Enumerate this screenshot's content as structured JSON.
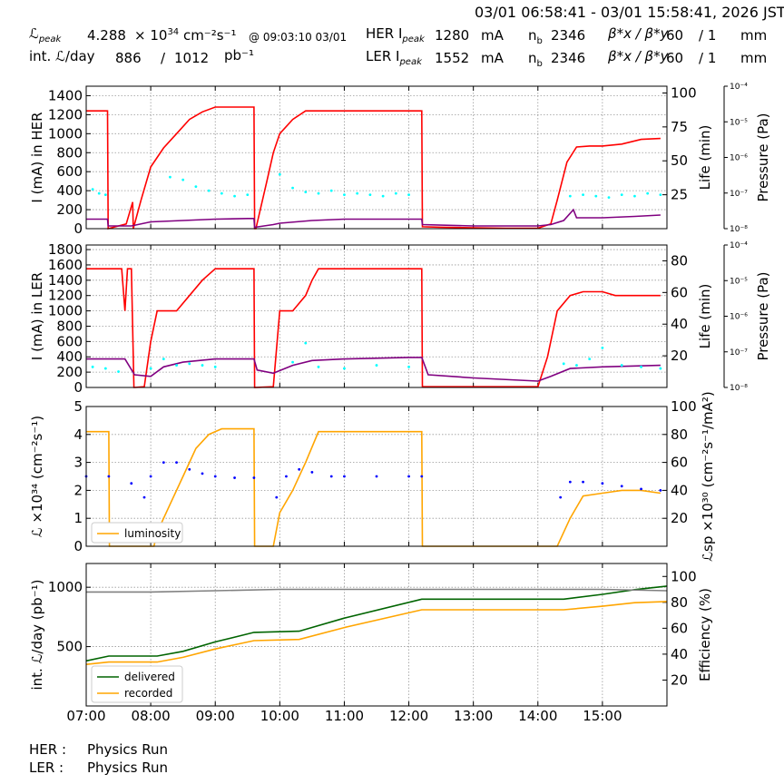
{
  "header": {
    "time_range": "03/01 06:58:41 - 03/01 15:58:41, 2026 JST",
    "lpeak_label": "ℒ",
    "lpeak_sub": "peak",
    "lpeak_value": "4.288",
    "lpeak_unit_pre": "× 10",
    "lpeak_unit_exp": "34",
    "lpeak_unit_post": "cm⁻²s⁻¹",
    "lpeak_at": "@ 09:03:10 03/01",
    "intl_label": "int. ℒ/day",
    "intl_value": "886",
    "intl_sep": "/",
    "intl_total": "1012",
    "intl_unit": "pb⁻¹",
    "her_label": "HER I",
    "her_sub": "peak",
    "her_value": "1280",
    "her_unit": "mA",
    "her_nb_label": "n",
    "her_nb_sub": "b",
    "her_nb": "2346",
    "her_beta_label": "β*x / β*y",
    "her_beta_x": "60",
    "her_beta_sep": "/ 1",
    "her_beta_unit": "mm",
    "ler_label": "LER I",
    "ler_sub": "peak",
    "ler_value": "1552",
    "ler_unit": "mA",
    "ler_nb_label": "n",
    "ler_nb_sub": "b",
    "ler_nb": "2346",
    "ler_beta_label": "β*x / β*y",
    "ler_beta_x": "60",
    "ler_beta_sep": "/ 1",
    "ler_beta_unit": "mm"
  },
  "footer": {
    "her_label": "HER :",
    "her_status": "Physics Run",
    "ler_label": "LER :",
    "ler_status": "Physics Run"
  },
  "colors": {
    "current": "#ff0000",
    "life": "#800080",
    "pressure": "#00ffff",
    "luminosity": "#ffa500",
    "specific": "#0000ff",
    "delivered": "#006400",
    "recorded": "#ffa500",
    "efficiency": "#808080"
  },
  "chart_data": [
    {
      "type": "line",
      "panel": "her",
      "ylabel": "I (mA) in HER",
      "ylabel2": "Life (min)",
      "ylabel3": "Pressure (Pa)",
      "xlim": [
        7.0,
        16.0
      ],
      "ylim": [
        0,
        1500
      ],
      "yticks": [
        0,
        200,
        400,
        600,
        800,
        1000,
        1200,
        1400
      ],
      "y2lim": [
        0,
        105
      ],
      "y2ticks": [
        25,
        50,
        75,
        100
      ],
      "y3ticks": [
        "10⁻⁸",
        "10⁻⁷",
        "10⁻⁶",
        "10⁻⁵",
        "10⁻⁴"
      ],
      "series": [
        {
          "role": "current",
          "x": [
            7.0,
            7.33,
            7.34,
            7.62,
            7.72,
            7.73,
            7.85,
            8.0,
            8.2,
            8.4,
            8.6,
            8.8,
            9.0,
            9.2,
            9.6,
            9.61,
            9.63,
            9.8,
            9.9,
            10.0,
            10.2,
            10.4,
            10.6,
            10.8,
            11.0,
            11.5,
            12.0,
            12.2,
            12.21,
            12.5,
            13.0,
            13.5,
            14.0,
            14.2,
            14.3,
            14.45,
            14.6,
            14.8,
            15.0,
            15.3,
            15.6,
            15.9
          ],
          "y": [
            1240,
            1240,
            0,
            50,
            280,
            0,
            300,
            650,
            850,
            1000,
            1150,
            1230,
            1280,
            1280,
            1280,
            0,
            0,
            500,
            800,
            1000,
            1150,
            1240,
            1240,
            1240,
            1240,
            1240,
            1240,
            1240,
            20,
            15,
            10,
            5,
            5,
            50,
            300,
            700,
            860,
            870,
            870,
            890,
            940,
            950
          ]
        },
        {
          "role": "life",
          "x": [
            7.0,
            7.33,
            7.34,
            7.7,
            8.0,
            8.5,
            9.0,
            9.5,
            9.6,
            9.61,
            9.9,
            10.0,
            10.5,
            11.0,
            12.0,
            12.2,
            12.21,
            13.0,
            14.0,
            14.2,
            14.4,
            14.55,
            14.6,
            15.0,
            15.5,
            15.9
          ],
          "y": [
            7,
            7,
            2,
            2,
            5,
            6,
            7,
            7.5,
            7.5,
            1,
            3,
            4,
            6,
            7,
            7,
            7,
            3,
            2,
            2,
            3,
            6,
            14,
            8,
            8,
            9,
            10
          ]
        },
        {
          "role": "pressure",
          "x": [
            7.1,
            7.2,
            7.3,
            8.3,
            8.5,
            8.7,
            8.9,
            9.1,
            9.3,
            9.5,
            10.0,
            10.2,
            10.4,
            10.6,
            10.8,
            11.0,
            11.2,
            11.4,
            11.6,
            11.8,
            12.0,
            14.5,
            14.7,
            14.9,
            15.1,
            15.3,
            15.5,
            15.7,
            15.9
          ],
          "y": [
            29,
            26,
            25,
            38,
            36,
            31,
            28,
            26,
            24,
            25,
            40,
            30,
            27,
            26,
            28,
            25,
            26,
            25,
            24,
            26,
            25,
            24,
            25,
            24,
            23,
            25,
            24,
            26,
            25
          ]
        }
      ]
    },
    {
      "type": "line",
      "panel": "ler",
      "ylabel": "I (mA) in LER",
      "ylabel2": "Life (min)",
      "ylabel3": "Pressure (Pa)",
      "xlim": [
        7.0,
        16.0
      ],
      "ylim": [
        0,
        1860
      ],
      "yticks": [
        0,
        200,
        400,
        600,
        800,
        1000,
        1200,
        1400,
        1600,
        1800
      ],
      "y2lim": [
        0,
        90
      ],
      "y2ticks": [
        20,
        40,
        60,
        80
      ],
      "y3ticks": [
        "10⁻⁸",
        "10⁻⁷",
        "10⁻⁶",
        "10⁻⁵",
        "10⁻⁴"
      ],
      "series": [
        {
          "role": "current",
          "x": [
            7.0,
            7.55,
            7.6,
            7.64,
            7.7,
            7.74,
            7.75,
            7.9,
            8.0,
            8.1,
            8.4,
            8.6,
            8.8,
            9.0,
            9.2,
            9.6,
            9.61,
            9.9,
            10.0,
            10.2,
            10.4,
            10.5,
            10.6,
            11.0,
            11.5,
            12.0,
            12.2,
            12.21,
            13.0,
            14.0,
            14.15,
            14.3,
            14.5,
            14.7,
            15.0,
            15.2,
            15.5,
            15.9
          ],
          "y": [
            1550,
            1550,
            1000,
            1550,
            1550,
            0,
            0,
            10,
            600,
            1000,
            1000,
            1200,
            1400,
            1550,
            1550,
            1550,
            0,
            10,
            1000,
            1000,
            1200,
            1400,
            1550,
            1550,
            1550,
            1550,
            1550,
            10,
            10,
            10,
            400,
            1000,
            1200,
            1250,
            1250,
            1200,
            1200,
            1200
          ]
        },
        {
          "role": "life",
          "x": [
            7.0,
            7.6,
            7.75,
            8.0,
            8.2,
            8.5,
            9.0,
            9.6,
            9.65,
            9.9,
            10.2,
            10.5,
            11.0,
            12.0,
            12.2,
            12.3,
            13.0,
            14.0,
            14.2,
            14.5,
            15.0,
            15.9
          ],
          "y": [
            18,
            18,
            8,
            7,
            13,
            16,
            18,
            18,
            11,
            9,
            14,
            17,
            18,
            19,
            19,
            8,
            6,
            4,
            7,
            12,
            13,
            14
          ]
        },
        {
          "role": "pressure",
          "x": [
            7.1,
            7.3,
            7.5,
            8.0,
            8.2,
            8.4,
            8.6,
            8.8,
            9.0,
            10.2,
            10.4,
            10.6,
            11.0,
            11.5,
            12.0,
            14.4,
            14.6,
            14.8,
            15.0,
            15.3,
            15.6,
            15.9
          ],
          "y": [
            13,
            12,
            10,
            12,
            18,
            14,
            15,
            14,
            13,
            16,
            28,
            13,
            12,
            14,
            13,
            15,
            14,
            18,
            25,
            14,
            13,
            12
          ]
        }
      ]
    },
    {
      "type": "line",
      "panel": "luminosity",
      "ylabel": "ℒ ×10³⁴ (cm⁻²s⁻¹)",
      "ylabel2": "ℒsp ×10³⁰ (cm⁻²s⁻¹/mA²)",
      "legend": [
        "luminosity"
      ],
      "legend_loc": "lower-left",
      "xlim": [
        7.0,
        16.0
      ],
      "ylim": [
        0,
        5
      ],
      "yticks": [
        0,
        1,
        2,
        3,
        4,
        5
      ],
      "y2lim": [
        0,
        100
      ],
      "y2ticks": [
        20,
        40,
        60,
        80,
        100
      ],
      "series": [
        {
          "name": "luminosity",
          "role": "luminosity",
          "x": [
            7.0,
            7.35,
            7.36,
            8.05,
            8.1,
            8.3,
            8.5,
            8.7,
            8.9,
            9.1,
            9.3,
            9.6,
            9.61,
            9.9,
            10.0,
            10.2,
            10.4,
            10.6,
            11.0,
            11.5,
            12.0,
            12.2,
            12.21,
            13.0,
            14.0,
            14.3,
            14.5,
            14.7,
            15.0,
            15.3,
            15.6,
            15.9
          ],
          "y": [
            4.1,
            4.1,
            0,
            0,
            0.5,
            1.5,
            2.5,
            3.5,
            4.0,
            4.2,
            4.2,
            4.2,
            0,
            0,
            1.2,
            2.0,
            3.0,
            4.1,
            4.1,
            4.1,
            4.1,
            4.1,
            0,
            0,
            0,
            0,
            1.0,
            1.8,
            1.9,
            2.0,
            2.0,
            1.9
          ]
        },
        {
          "role": "specific",
          "x": [
            7.0,
            7.35,
            7.7,
            7.9,
            8.0,
            8.2,
            8.4,
            8.6,
            8.8,
            9.0,
            9.3,
            9.6,
            9.95,
            10.1,
            10.3,
            10.5,
            10.8,
            11.0,
            11.5,
            12.0,
            12.2,
            14.35,
            14.5,
            14.7,
            15.0,
            15.3,
            15.6,
            15.9
          ],
          "y": [
            50,
            50,
            45,
            35,
            50,
            60,
            60,
            55,
            52,
            50,
            49,
            49,
            35,
            50,
            55,
            53,
            50,
            50,
            50,
            50,
            50,
            35,
            46,
            46,
            45,
            43,
            41,
            40
          ]
        }
      ]
    },
    {
      "type": "line",
      "panel": "integrated",
      "ylabel": "int. ℒ/day (pb⁻¹)",
      "ylabel2": "Efficiency (%)",
      "legend": [
        "delivered",
        "recorded"
      ],
      "legend_loc": "lower-left",
      "xlim": [
        7.0,
        16.0
      ],
      "ylim": [
        0,
        1200
      ],
      "yticks": [
        500,
        1000
      ],
      "y2lim": [
        0,
        110
      ],
      "y2ticks": [
        20,
        40,
        60,
        80,
        100
      ],
      "xticks": [
        "07:00",
        "08:00",
        "09:00",
        "10:00",
        "11:00",
        "12:00",
        "13:00",
        "14:00",
        "15:00"
      ],
      "series": [
        {
          "name": "delivered",
          "role": "delivered",
          "x": [
            7.0,
            7.35,
            8.1,
            8.5,
            9.0,
            9.6,
            10.3,
            11.0,
            12.2,
            13.0,
            14.4,
            15.0,
            15.5,
            16.0
          ],
          "y": [
            380,
            420,
            420,
            460,
            540,
            620,
            630,
            740,
            900,
            900,
            900,
            940,
            980,
            1010
          ]
        },
        {
          "name": "recorded",
          "role": "recorded",
          "x": [
            7.0,
            7.35,
            8.1,
            8.5,
            9.0,
            9.6,
            10.3,
            11.0,
            12.2,
            13.0,
            14.4,
            15.0,
            15.5,
            16.0
          ],
          "y": [
            350,
            370,
            370,
            410,
            480,
            550,
            560,
            660,
            810,
            810,
            810,
            840,
            870,
            880
          ]
        },
        {
          "role": "efficiency",
          "x": [
            7.0,
            8.0,
            9.0,
            10.0,
            11.0,
            12.0,
            13.0,
            14.0,
            15.0,
            16.0
          ],
          "y": [
            88,
            88,
            89,
            90,
            90,
            90,
            90,
            90,
            90,
            89
          ]
        }
      ]
    }
  ]
}
